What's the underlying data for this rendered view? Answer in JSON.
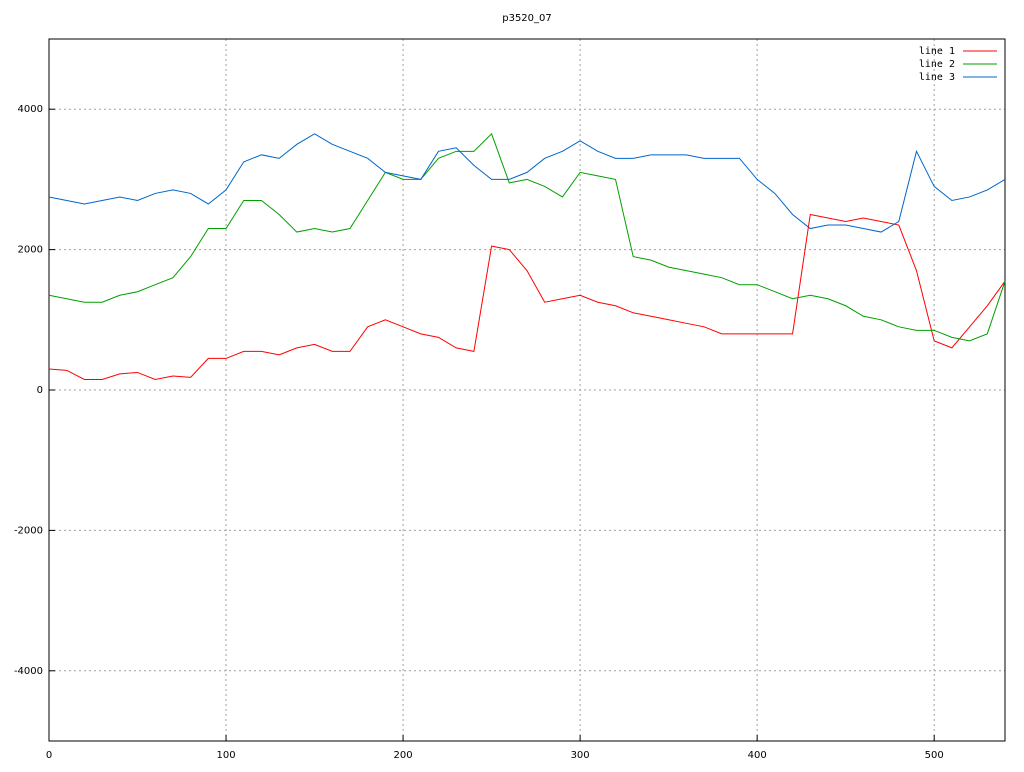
{
  "chart_data": {
    "type": "line",
    "title": "p3520_07",
    "x": [
      0,
      10,
      20,
      30,
      40,
      50,
      60,
      70,
      80,
      90,
      100,
      110,
      120,
      130,
      140,
      150,
      160,
      170,
      180,
      190,
      200,
      210,
      220,
      230,
      240,
      250,
      260,
      270,
      280,
      290,
      300,
      310,
      320,
      330,
      340,
      350,
      360,
      370,
      380,
      390,
      400,
      410,
      420,
      430,
      440,
      450,
      460,
      470,
      480,
      490,
      500,
      510,
      520,
      530,
      540
    ],
    "series": [
      {
        "name": "line 1",
        "color": "#ff0000",
        "values": [
          300,
          280,
          150,
          150,
          230,
          250,
          150,
          200,
          180,
          450,
          450,
          550,
          550,
          500,
          600,
          650,
          550,
          550,
          900,
          1000,
          900,
          800,
          750,
          600,
          550,
          2050,
          2000,
          1700,
          1250,
          1300,
          1350,
          1250,
          1200,
          1100,
          1050,
          1000,
          950,
          900,
          800,
          800,
          800,
          800,
          800,
          2500,
          2450,
          2400,
          2450,
          2400,
          2350,
          1700,
          700,
          600,
          900,
          1200,
          1550
        ]
      },
      {
        "name": "line 2",
        "color": "#00a000",
        "values": [
          1350,
          1300,
          1250,
          1250,
          1350,
          1400,
          1500,
          1600,
          1900,
          2300,
          2300,
          2700,
          2700,
          2500,
          2250,
          2300,
          2250,
          2300,
          2700,
          3100,
          3000,
          3000,
          3300,
          3400,
          3400,
          3650,
          2950,
          3000,
          2900,
          2750,
          3100,
          3050,
          3000,
          1900,
          1850,
          1750,
          1700,
          1650,
          1600,
          1500,
          1500,
          1400,
          1300,
          1350,
          1300,
          1200,
          1050,
          1000,
          900,
          850,
          850,
          750,
          700,
          800,
          1550
        ]
      },
      {
        "name": "line 3",
        "color": "#0066cc",
        "values": [
          2750,
          2700,
          2650,
          2700,
          2750,
          2700,
          2800,
          2850,
          2800,
          2650,
          2850,
          3250,
          3350,
          3300,
          3500,
          3650,
          3500,
          3400,
          3300,
          3100,
          3050,
          3000,
          3400,
          3450,
          3200,
          3000,
          3000,
          3100,
          3300,
          3400,
          3550,
          3400,
          3300,
          3300,
          3350,
          3350,
          3350,
          3300,
          3300,
          3300,
          3000,
          2800,
          2500,
          2300,
          2350,
          2350,
          2300,
          2250,
          2400,
          3400,
          2900,
          2700,
          2750,
          2850,
          3000
        ]
      }
    ],
    "xlim": [
      0,
      540
    ],
    "xticks": [
      0,
      100,
      200,
      300,
      400,
      500
    ],
    "ylim": [
      -5000,
      5000
    ],
    "yticks": [
      -4000,
      -2000,
      0,
      2000,
      4000
    ],
    "grid": true,
    "legend": "top-right"
  }
}
